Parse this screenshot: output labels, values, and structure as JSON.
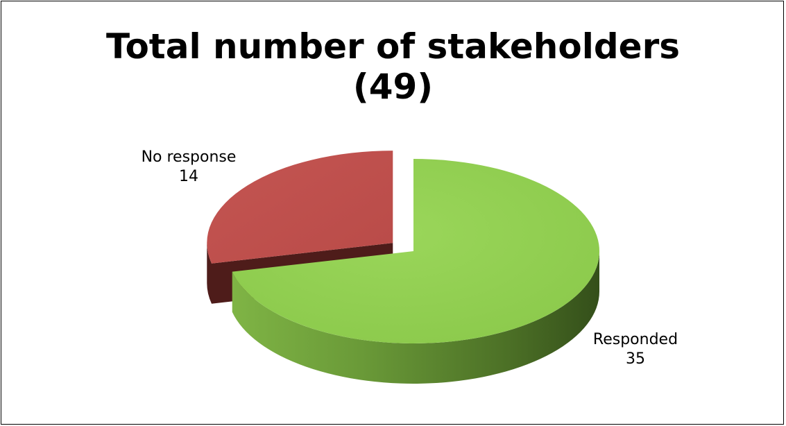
{
  "chart_data": {
    "type": "pie",
    "title_line1": "Total number of stakeholders",
    "title_line2": "(49)",
    "slices": [
      {
        "label": "Responded",
        "value": 35,
        "color": "#92D050",
        "side_dark": "#3E5A1E",
        "side_light": "#7FB445",
        "exploded": false
      },
      {
        "label": "No response",
        "value": 14,
        "color": "#C0504D",
        "side_dark": "#4E1C1A",
        "side_light": "#6B2725",
        "exploded": true
      }
    ],
    "three_d": true,
    "legend": "none",
    "data_labels": "category-and-value"
  }
}
